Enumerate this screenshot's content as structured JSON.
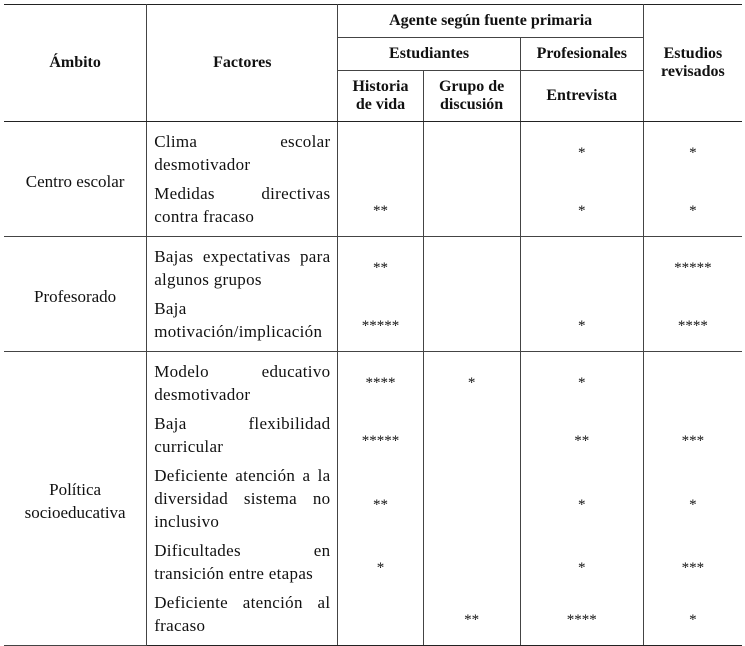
{
  "table": {
    "header": {
      "ambito": "Ámbito",
      "factores": "Factores",
      "agente": "Agente según fuente primaria",
      "estudiantes": "Estudiantes",
      "profesionales": "Profesionales",
      "estudios": "Estudios revisados",
      "historia": "Historia de vida",
      "grupo": "Grupo de discusión",
      "entrevista": "Entrevista"
    },
    "groups": [
      {
        "name": "Centro escolar",
        "rows": [
          {
            "factor": "Clima escolar desmotivador",
            "cells": [
              null,
              null,
              "*",
              "*"
            ]
          },
          {
            "factor": "Medidas directivas contra fracaso",
            "cells": [
              "**",
              null,
              "*",
              "*"
            ]
          }
        ]
      },
      {
        "name": "Profesorado",
        "rows": [
          {
            "factor": "Bajas expectativas para algunos grupos",
            "cells": [
              "**",
              null,
              null,
              "*****"
            ]
          },
          {
            "factor": "Baja motivación/implicación",
            "cells": [
              "*****",
              null,
              "*",
              "****"
            ]
          }
        ]
      },
      {
        "name": "Política socioeducativa",
        "rows": [
          {
            "factor": "Modelo educativo desmotivador",
            "cells": [
              "****",
              "*",
              "*",
              null
            ]
          },
          {
            "factor": "Baja flexibilidad curricular",
            "cells": [
              "*****",
              null,
              "**",
              "***"
            ]
          },
          {
            "factor": "Deficiente atención a la diversidad sistema no inclusivo",
            "cells": [
              "**",
              null,
              "*",
              "*"
            ]
          },
          {
            "factor": "Dificultades en transición entre etapas",
            "cells": [
              "*",
              null,
              "*",
              "***"
            ]
          },
          {
            "factor": "Deficiente atención al fracaso",
            "cells": [
              null,
              "**",
              "****",
              "*"
            ]
          }
        ]
      }
    ]
  }
}
